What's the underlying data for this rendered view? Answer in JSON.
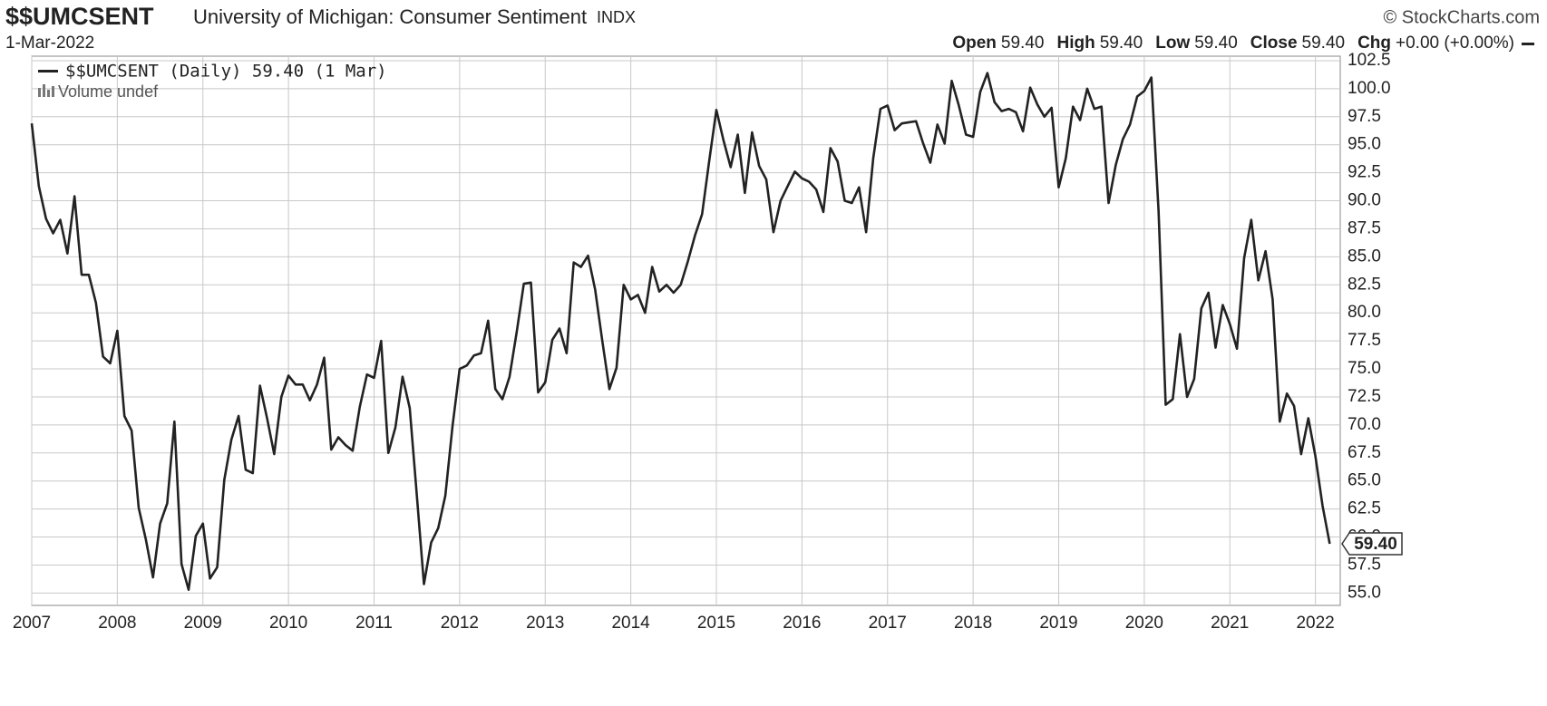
{
  "chart_data": {
    "type": "line",
    "symbol": "$$UMCSENT",
    "title": "University of Michigan: Consumer Sentiment",
    "exchange": "INDX",
    "watermark": "© StockCharts.com",
    "date": "1-Mar-2022",
    "info": [
      {
        "label": "Open",
        "value": "59.40"
      },
      {
        "label": "High",
        "value": "59.40"
      },
      {
        "label": "Low",
        "value": "59.40"
      },
      {
        "label": "Close",
        "value": "59.40"
      },
      {
        "label": "Chg",
        "value": "+0.00 (+0.00%)"
      }
    ],
    "volume_label": "Volume undef",
    "last_value_label": "59.40",
    "xlim": [
      2007,
      2022.29
    ],
    "xticks": [
      2007,
      2008,
      2009,
      2010,
      2011,
      2012,
      2013,
      2014,
      2015,
      2016,
      2017,
      2018,
      2019,
      2020,
      2021,
      2022
    ],
    "ylim": [
      53.9,
      102.9
    ],
    "yticks": [
      {
        "value": 55,
        "label": "55.0"
      },
      57.5,
      {
        "value": 60,
        "label": "60.0"
      },
      62.5,
      {
        "value": 65,
        "label": "65.0"
      },
      67.5,
      {
        "value": 70,
        "label": "70.0"
      },
      72.5,
      {
        "value": 75,
        "label": "75.0"
      },
      77.5,
      {
        "value": 80,
        "label": "80.0"
      },
      82.5,
      {
        "value": 85,
        "label": "85.0"
      },
      87.5,
      {
        "value": 90,
        "label": "90.0"
      },
      92.5,
      {
        "value": 95,
        "label": "95.0"
      },
      97.5,
      {
        "value": 100,
        "label": "100.0"
      },
      102.5
    ],
    "grid": true,
    "x": [
      2007,
      2007.083,
      2007.167,
      2007.25,
      2007.333,
      2007.417,
      2007.5,
      2007.583,
      2007.667,
      2007.75,
      2007.833,
      2007.917,
      2008,
      2008.083,
      2008.167,
      2008.25,
      2008.333,
      2008.417,
      2008.5,
      2008.583,
      2008.667,
      2008.75,
      2008.833,
      2008.917,
      2009,
      2009.083,
      2009.167,
      2009.25,
      2009.333,
      2009.417,
      2009.5,
      2009.583,
      2009.667,
      2009.75,
      2009.833,
      2009.917,
      2010,
      2010.083,
      2010.167,
      2010.25,
      2010.333,
      2010.417,
      2010.5,
      2010.583,
      2010.667,
      2010.75,
      2010.833,
      2010.917,
      2011,
      2011.083,
      2011.167,
      2011.25,
      2011.333,
      2011.417,
      2011.5,
      2011.583,
      2011.667,
      2011.75,
      2011.833,
      2011.917,
      2012,
      2012.083,
      2012.167,
      2012.25,
      2012.333,
      2012.417,
      2012.5,
      2012.583,
      2012.667,
      2012.75,
      2012.833,
      2012.917,
      2013,
      2013.083,
      2013.167,
      2013.25,
      2013.333,
      2013.417,
      2013.5,
      2013.583,
      2013.667,
      2013.75,
      2013.833,
      2013.917,
      2014,
      2014.083,
      2014.167,
      2014.25,
      2014.333,
      2014.417,
      2014.5,
      2014.583,
      2014.667,
      2014.75,
      2014.833,
      2014.917,
      2015,
      2015.083,
      2015.167,
      2015.25,
      2015.333,
      2015.417,
      2015.5,
      2015.583,
      2015.667,
      2015.75,
      2015.833,
      2015.917,
      2016,
      2016.083,
      2016.167,
      2016.25,
      2016.333,
      2016.417,
      2016.5,
      2016.583,
      2016.667,
      2016.75,
      2016.833,
      2016.917,
      2017,
      2017.083,
      2017.167,
      2017.25,
      2017.333,
      2017.417,
      2017.5,
      2017.583,
      2017.667,
      2017.75,
      2017.833,
      2017.917,
      2018,
      2018.083,
      2018.167,
      2018.25,
      2018.333,
      2018.417,
      2018.5,
      2018.583,
      2018.667,
      2018.75,
      2018.833,
      2018.917,
      2019,
      2019.083,
      2019.167,
      2019.25,
      2019.333,
      2019.417,
      2019.5,
      2019.583,
      2019.667,
      2019.75,
      2019.833,
      2019.917,
      2020,
      2020.083,
      2020.167,
      2020.25,
      2020.333,
      2020.417,
      2020.5,
      2020.583,
      2020.667,
      2020.75,
      2020.833,
      2020.917,
      2021,
      2021.083,
      2021.167,
      2021.25,
      2021.333,
      2021.417,
      2021.5,
      2021.583,
      2021.667,
      2021.75,
      2021.833,
      2021.917,
      2022,
      2022.083,
      2022.167
    ],
    "series": [
      {
        "name": "$$UMCSENT (Daily) 59.40 (1 Mar)",
        "color": "#222222",
        "values": [
          96.9,
          91.3,
          88.4,
          87.1,
          88.3,
          85.3,
          90.4,
          83.4,
          83.4,
          80.9,
          76.1,
          75.5,
          78.4,
          70.8,
          69.5,
          62.6,
          59.8,
          56.4,
          61.2,
          63.0,
          70.3,
          57.6,
          55.3,
          60.1,
          61.2,
          56.3,
          57.3,
          65.1,
          68.7,
          70.8,
          66.0,
          65.7,
          73.5,
          70.6,
          67.4,
          72.5,
          74.4,
          73.6,
          73.6,
          72.2,
          73.6,
          76.0,
          67.8,
          68.9,
          68.2,
          67.7,
          71.6,
          74.5,
          74.2,
          77.5,
          67.5,
          69.8,
          74.3,
          71.5,
          63.7,
          55.8,
          59.5,
          60.8,
          63.7,
          69.9,
          75.0,
          75.3,
          76.2,
          76.4,
          79.3,
          73.2,
          72.3,
          74.3,
          78.3,
          82.6,
          82.7,
          72.9,
          73.8,
          77.6,
          78.6,
          76.4,
          84.5,
          84.1,
          85.1,
          82.1,
          77.5,
          73.2,
          75.1,
          82.5,
          81.2,
          81.6,
          80.0,
          84.1,
          81.9,
          82.5,
          81.8,
          82.5,
          84.6,
          86.9,
          88.8,
          93.6,
          98.1,
          95.4,
          93.0,
          95.9,
          90.7,
          96.1,
          93.1,
          91.9,
          87.2,
          90.0,
          91.3,
          92.6,
          92.0,
          91.7,
          91.0,
          89.0,
          94.7,
          93.5,
          90.0,
          89.8,
          91.2,
          87.2,
          93.8,
          98.2,
          98.5,
          96.3,
          96.9,
          97.0,
          97.1,
          95.1,
          93.4,
          96.8,
          95.1,
          100.7,
          98.5,
          95.9,
          95.7,
          99.7,
          101.4,
          98.8,
          98.0,
          98.2,
          97.9,
          96.2,
          100.1,
          98.6,
          97.5,
          98.3,
          91.2,
          93.8,
          98.4,
          97.2,
          100.0,
          98.2,
          98.4,
          89.8,
          93.2,
          95.5,
          96.8,
          99.3,
          99.8,
          101.0,
          89.1,
          71.8,
          72.3,
          78.1,
          72.5,
          74.1,
          80.4,
          81.8,
          76.9,
          80.7,
          79.0,
          76.8,
          84.9,
          88.3,
          82.9,
          85.5,
          81.2,
          70.3,
          72.8,
          71.7,
          67.4,
          70.6,
          67.2,
          62.8,
          59.4
        ]
      }
    ]
  }
}
